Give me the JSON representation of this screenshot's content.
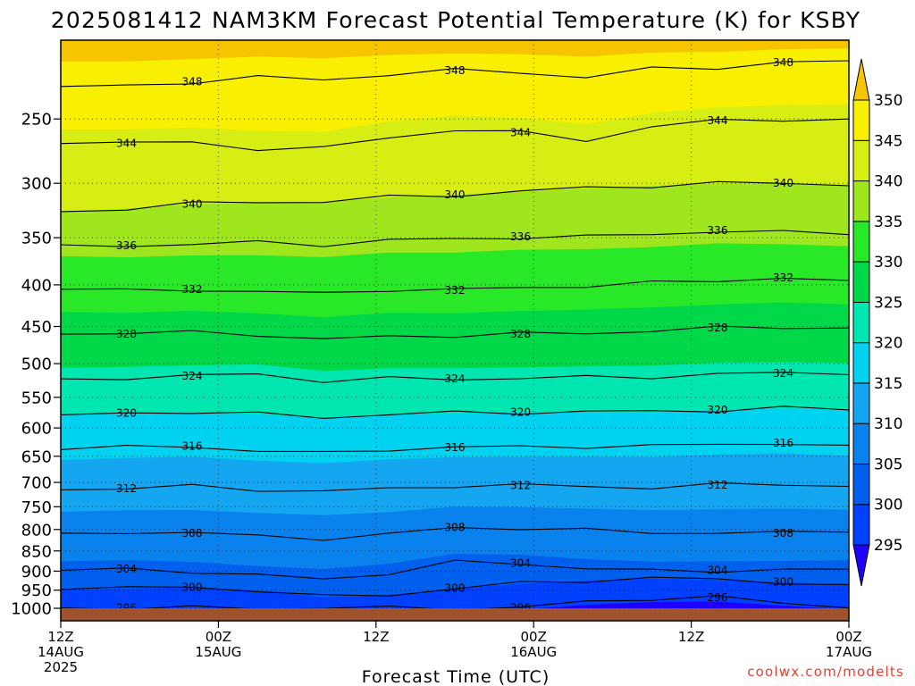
{
  "chart_data": {
    "type": "heatmap",
    "title": "2025081412 NAM3KM Forecast Potential Temperature (K) for KSBY",
    "xlabel": "Forecast Time (UTC)",
    "ylabel": "",
    "credit": "coolwx.com/modelts",
    "y_axis": {
      "scale": "log-pressure",
      "ylim": [
        1000,
        200
      ],
      "ticks": [
        250,
        300,
        350,
        400,
        450,
        500,
        550,
        600,
        650,
        700,
        750,
        800,
        850,
        900,
        950,
        1000
      ]
    },
    "x_axis": {
      "range_hours": [
        0,
        60
      ],
      "ticks": [
        {
          "hour": 0,
          "lines": [
            "12Z",
            "14AUG",
            "2025"
          ]
        },
        {
          "hour": 12,
          "lines": [
            "00Z",
            "15AUG"
          ]
        },
        {
          "hour": 24,
          "lines": [
            "12Z"
          ]
        },
        {
          "hour": 36,
          "lines": [
            "00Z",
            "16AUG"
          ]
        },
        {
          "hour": 48,
          "lines": [
            "12Z"
          ]
        },
        {
          "hour": 60,
          "lines": [
            "00Z",
            "17AUG"
          ]
        }
      ]
    },
    "colorbar": {
      "levels": [
        295,
        300,
        305,
        310,
        315,
        320,
        325,
        330,
        335,
        340,
        345,
        350
      ],
      "colors": [
        "#1e00ff",
        "#0040ff",
        "#0060ee",
        "#0a82ee",
        "#14a6f0",
        "#00d2f0",
        "#00e6b0",
        "#00d84a",
        "#28e828",
        "#a0e61e",
        "#d6ee14",
        "#f8f000",
        "#f7c400"
      ]
    },
    "grid": "dotted",
    "ground_color": "#a0522d",
    "isentropes": [
      {
        "value": 296,
        "p": [
          999,
          999,
          999,
          999,
          999,
          999,
          999,
          999,
          982,
          972,
          970,
          985,
          999
        ]
      },
      {
        "value": 300,
        "p": [
          948,
          945,
          942,
          950,
          968,
          962,
          945,
          932,
          924,
          918,
          922,
          928,
          935
        ]
      },
      {
        "value": 304,
        "p": [
          898,
          895,
          900,
          912,
          920,
          905,
          878,
          880,
          893,
          900,
          898,
          897,
          895
        ]
      },
      {
        "value": 308,
        "p": [
          808,
          805,
          808,
          815,
          820,
          812,
          795,
          797,
          802,
          806,
          808,
          808,
          806
        ]
      },
      {
        "value": 312,
        "p": [
          715,
          712,
          708,
          714,
          718,
          713,
          706,
          706,
          708,
          710,
          705,
          703,
          708
        ]
      },
      {
        "value": 316,
        "p": [
          638,
          634,
          632,
          640,
          645,
          637,
          634,
          633,
          632,
          632,
          628,
          626,
          630
        ]
      },
      {
        "value": 320,
        "p": [
          578,
          575,
          573,
          577,
          582,
          577,
          575,
          574,
          573,
          573,
          570,
          567,
          570
        ]
      },
      {
        "value": 324,
        "p": [
          522,
          520,
          518,
          515,
          525,
          522,
          522,
          521,
          520,
          519,
          515,
          514,
          516
        ]
      },
      {
        "value": 328,
        "p": [
          460,
          460,
          457,
          460,
          468,
          462,
          462,
          460,
          458,
          456,
          452,
          450,
          452
        ]
      },
      {
        "value": 332,
        "p": [
          405,
          407,
          405,
          408,
          410,
          405,
          406,
          403,
          401,
          398,
          395,
          392,
          395
        ]
      },
      {
        "value": 336,
        "p": [
          357,
          358,
          356,
          355,
          357,
          352,
          352,
          349,
          349,
          347,
          343,
          345,
          347
        ]
      },
      {
        "value": 340,
        "p": [
          325,
          322,
          318,
          316,
          316,
          312,
          310,
          307,
          304,
          302,
          300,
          300,
          302
        ]
      },
      {
        "value": 344,
        "p": [
          268,
          268,
          267,
          272,
          272,
          263,
          258,
          260,
          265,
          256,
          251,
          250,
          250
        ]
      },
      {
        "value": 348,
        "p": [
          228,
          228,
          225,
          222,
          224,
          220,
          218,
          219,
          222,
          217,
          216,
          213,
          212
        ]
      }
    ]
  }
}
